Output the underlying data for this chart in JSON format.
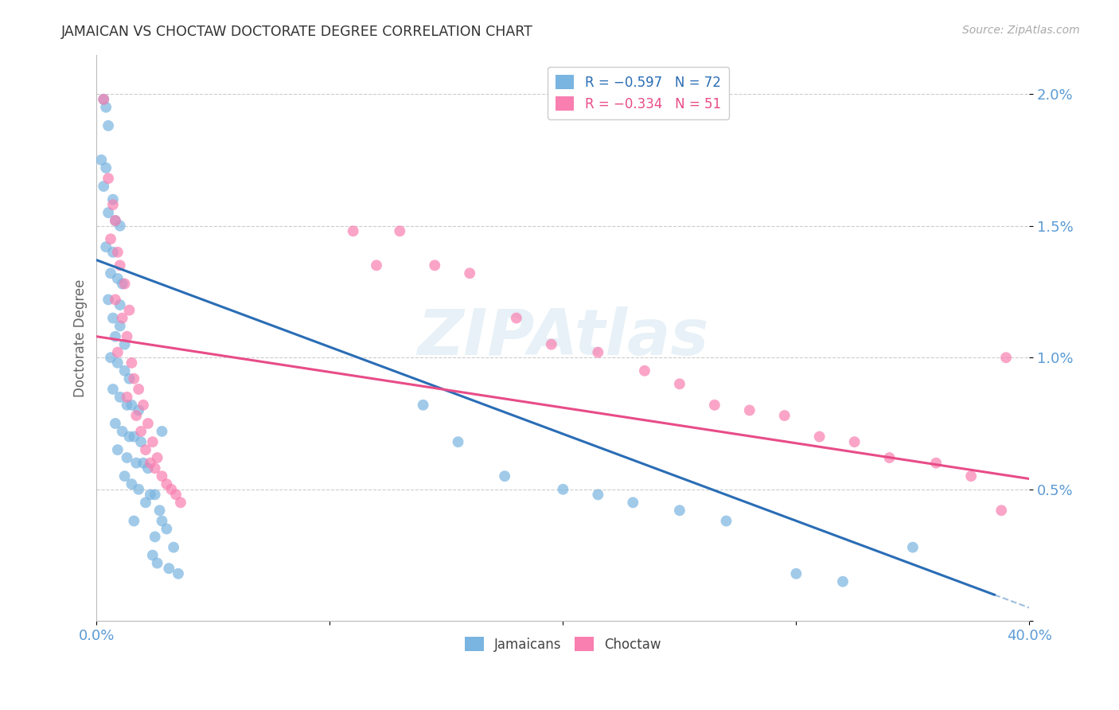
{
  "title": "JAMAICAN VS CHOCTAW DOCTORATE DEGREE CORRELATION CHART",
  "source": "Source: ZipAtlas.com",
  "ylabel": "Doctorate Degree",
  "yticks": [
    0.0,
    0.005,
    0.01,
    0.015,
    0.02
  ],
  "ytick_labels": [
    "",
    "0.5%",
    "1.0%",
    "1.5%",
    "2.0%"
  ],
  "xlim": [
    0.0,
    0.4
  ],
  "ylim": [
    0.0,
    0.0215
  ],
  "blue_color": "#7ab4e0",
  "pink_color": "#f87fb0",
  "blue_line_color": "#2a6db5",
  "pink_line_color": "#e84c88",
  "background_color": "#ffffff",
  "grid_color": "#cccccc",
  "title_color": "#333333",
  "axis_label_color": "#5b9bd5",
  "blue_line": [
    0.0,
    0.0137,
    0.385,
    0.001
  ],
  "pink_line": [
    0.0,
    0.0108,
    0.4,
    0.0054
  ],
  "jamaican_points": [
    [
      0.003,
      0.0198
    ],
    [
      0.004,
      0.0195
    ],
    [
      0.005,
      0.0188
    ],
    [
      0.002,
      0.0175
    ],
    [
      0.004,
      0.0172
    ],
    [
      0.003,
      0.0165
    ],
    [
      0.007,
      0.016
    ],
    [
      0.005,
      0.0155
    ],
    [
      0.008,
      0.0152
    ],
    [
      0.01,
      0.015
    ],
    [
      0.004,
      0.0142
    ],
    [
      0.007,
      0.014
    ],
    [
      0.006,
      0.0132
    ],
    [
      0.009,
      0.013
    ],
    [
      0.011,
      0.0128
    ],
    [
      0.005,
      0.0122
    ],
    [
      0.01,
      0.012
    ],
    [
      0.007,
      0.0115
    ],
    [
      0.01,
      0.0112
    ],
    [
      0.008,
      0.0108
    ],
    [
      0.012,
      0.0105
    ],
    [
      0.006,
      0.01
    ],
    [
      0.009,
      0.0098
    ],
    [
      0.012,
      0.0095
    ],
    [
      0.014,
      0.0092
    ],
    [
      0.007,
      0.0088
    ],
    [
      0.01,
      0.0085
    ],
    [
      0.013,
      0.0082
    ],
    [
      0.015,
      0.0082
    ],
    [
      0.018,
      0.008
    ],
    [
      0.008,
      0.0075
    ],
    [
      0.011,
      0.0072
    ],
    [
      0.014,
      0.007
    ],
    [
      0.016,
      0.007
    ],
    [
      0.019,
      0.0068
    ],
    [
      0.009,
      0.0065
    ],
    [
      0.013,
      0.0062
    ],
    [
      0.017,
      0.006
    ],
    [
      0.02,
      0.006
    ],
    [
      0.022,
      0.0058
    ],
    [
      0.012,
      0.0055
    ],
    [
      0.015,
      0.0052
    ],
    [
      0.018,
      0.005
    ],
    [
      0.023,
      0.0048
    ],
    [
      0.025,
      0.0048
    ],
    [
      0.021,
      0.0045
    ],
    [
      0.027,
      0.0042
    ],
    [
      0.016,
      0.0038
    ],
    [
      0.028,
      0.0038
    ],
    [
      0.03,
      0.0035
    ],
    [
      0.025,
      0.0032
    ],
    [
      0.033,
      0.0028
    ],
    [
      0.024,
      0.0025
    ],
    [
      0.026,
      0.0022
    ],
    [
      0.031,
      0.002
    ],
    [
      0.035,
      0.0018
    ],
    [
      0.028,
      0.0072
    ],
    [
      0.14,
      0.0082
    ],
    [
      0.155,
      0.0068
    ],
    [
      0.175,
      0.0055
    ],
    [
      0.2,
      0.005
    ],
    [
      0.215,
      0.0048
    ],
    [
      0.23,
      0.0045
    ],
    [
      0.25,
      0.0042
    ],
    [
      0.27,
      0.0038
    ],
    [
      0.3,
      0.0018
    ],
    [
      0.32,
      0.0015
    ],
    [
      0.35,
      0.0028
    ]
  ],
  "choctaw_points": [
    [
      0.003,
      0.0198
    ],
    [
      0.005,
      0.0168
    ],
    [
      0.007,
      0.0158
    ],
    [
      0.008,
      0.0152
    ],
    [
      0.006,
      0.0145
    ],
    [
      0.009,
      0.014
    ],
    [
      0.01,
      0.0135
    ],
    [
      0.012,
      0.0128
    ],
    [
      0.008,
      0.0122
    ],
    [
      0.014,
      0.0118
    ],
    [
      0.011,
      0.0115
    ],
    [
      0.013,
      0.0108
    ],
    [
      0.009,
      0.0102
    ],
    [
      0.015,
      0.0098
    ],
    [
      0.016,
      0.0092
    ],
    [
      0.018,
      0.0088
    ],
    [
      0.013,
      0.0085
    ],
    [
      0.02,
      0.0082
    ],
    [
      0.017,
      0.0078
    ],
    [
      0.022,
      0.0075
    ],
    [
      0.019,
      0.0072
    ],
    [
      0.024,
      0.0068
    ],
    [
      0.021,
      0.0065
    ],
    [
      0.026,
      0.0062
    ],
    [
      0.023,
      0.006
    ],
    [
      0.025,
      0.0058
    ],
    [
      0.028,
      0.0055
    ],
    [
      0.03,
      0.0052
    ],
    [
      0.032,
      0.005
    ],
    [
      0.034,
      0.0048
    ],
    [
      0.036,
      0.0045
    ],
    [
      0.11,
      0.0148
    ],
    [
      0.13,
      0.0148
    ],
    [
      0.12,
      0.0135
    ],
    [
      0.145,
      0.0135
    ],
    [
      0.16,
      0.0132
    ],
    [
      0.18,
      0.0115
    ],
    [
      0.195,
      0.0105
    ],
    [
      0.215,
      0.0102
    ],
    [
      0.235,
      0.0095
    ],
    [
      0.25,
      0.009
    ],
    [
      0.265,
      0.0082
    ],
    [
      0.28,
      0.008
    ],
    [
      0.295,
      0.0078
    ],
    [
      0.31,
      0.007
    ],
    [
      0.325,
      0.0068
    ],
    [
      0.34,
      0.0062
    ],
    [
      0.36,
      0.006
    ],
    [
      0.375,
      0.0055
    ],
    [
      0.388,
      0.0042
    ],
    [
      0.39,
      0.01
    ]
  ]
}
